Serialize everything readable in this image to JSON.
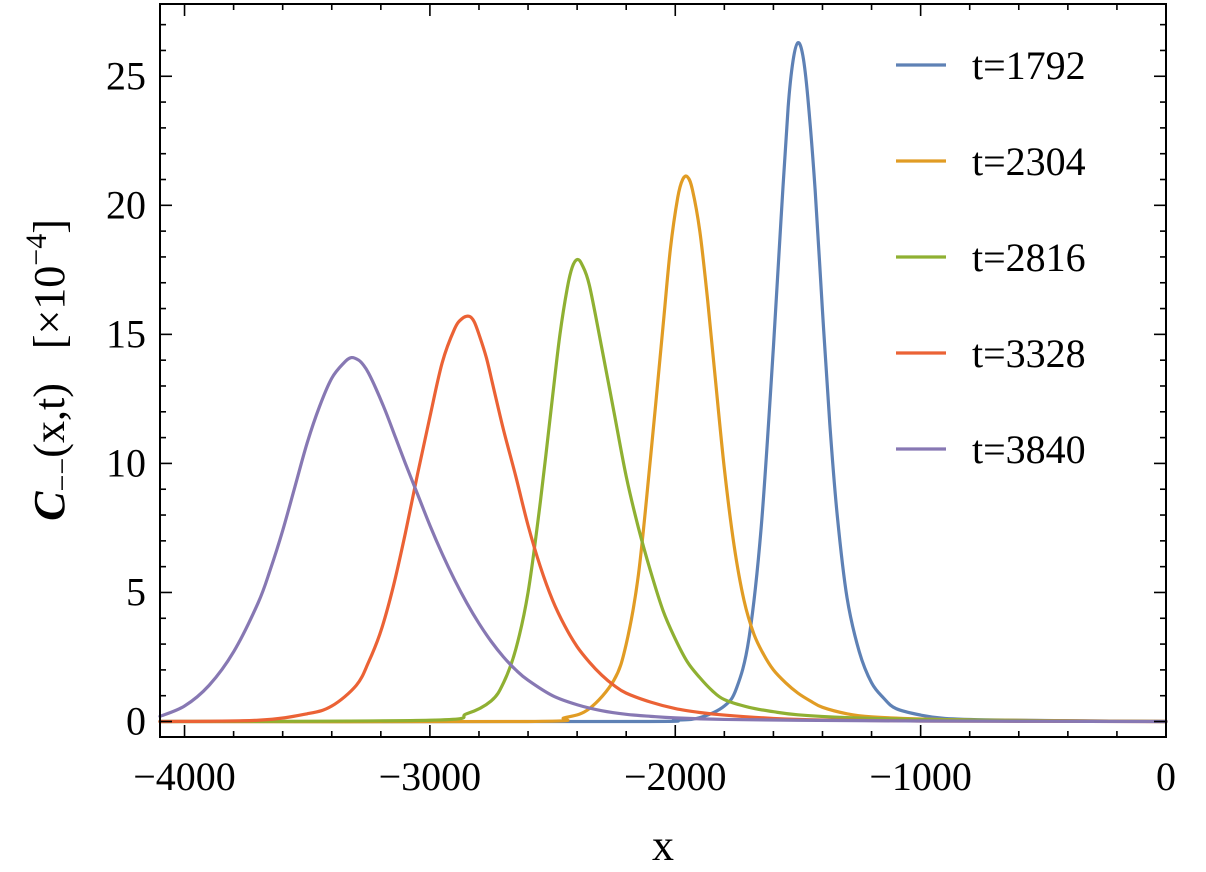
{
  "chart_data": {
    "type": "line",
    "title": "",
    "xlabel": "x",
    "ylabel": {
      "symbol": "C",
      "subscript": "−−",
      "args": "(x,t)",
      "scale_prefix": "[×10",
      "scale_exp": "−4",
      "scale_suffix": "]"
    },
    "xlim": [
      -4100,
      0
    ],
    "ylim": [
      -0.6,
      27.8
    ],
    "xticks": [
      {
        "value": -4000,
        "label": "−4000"
      },
      {
        "value": -3000,
        "label": "−3000"
      },
      {
        "value": -2000,
        "label": "−2000"
      },
      {
        "value": -1000,
        "label": "−1000"
      },
      {
        "value": 0,
        "label": "0"
      }
    ],
    "yticks": [
      {
        "value": 0,
        "label": "0"
      },
      {
        "value": 5,
        "label": "5"
      },
      {
        "value": 10,
        "label": "10"
      },
      {
        "value": 15,
        "label": "15"
      },
      {
        "value": 20,
        "label": "20"
      },
      {
        "value": 25,
        "label": "25"
      }
    ],
    "grid": false,
    "legend_position": "top-right",
    "series": [
      {
        "name": "t=1792",
        "color": "#5e81b5",
        "x": [
          -4100,
          -2200,
          -2000,
          -1900,
          -1800,
          -1750,
          -1700,
          -1650,
          -1600,
          -1570,
          -1540,
          -1520,
          -1500,
          -1480,
          -1460,
          -1430,
          -1400,
          -1370,
          -1340,
          -1300,
          -1250,
          -1200,
          -1150,
          -1100,
          -1000,
          -900,
          -700,
          -400,
          0
        ],
        "y": [
          0.0,
          0.0,
          0.05,
          0.15,
          0.6,
          1.3,
          3.2,
          7.5,
          14.5,
          19.3,
          23.8,
          25.6,
          26.3,
          25.8,
          24.2,
          20.6,
          15.9,
          11.5,
          8.0,
          4.8,
          2.7,
          1.5,
          0.9,
          0.5,
          0.25,
          0.12,
          0.06,
          0.03,
          0.0
        ]
      },
      {
        "name": "t=2304",
        "color": "#e19c24",
        "x": [
          -4100,
          -2600,
          -2450,
          -2350,
          -2250,
          -2200,
          -2150,
          -2100,
          -2050,
          -2020,
          -1990,
          -1970,
          -1950,
          -1930,
          -1900,
          -1870,
          -1840,
          -1800,
          -1760,
          -1720,
          -1680,
          -1640,
          -1600,
          -1550,
          -1500,
          -1450,
          -1400,
          -1300,
          -1200,
          -1000,
          -700,
          0
        ],
        "y": [
          0.0,
          0.0,
          0.15,
          0.5,
          1.6,
          3.0,
          5.7,
          10.3,
          15.3,
          18.3,
          20.3,
          21.0,
          21.1,
          20.6,
          19.0,
          16.5,
          13.6,
          9.8,
          6.8,
          4.7,
          3.4,
          2.6,
          2.0,
          1.5,
          1.1,
          0.8,
          0.55,
          0.3,
          0.18,
          0.1,
          0.05,
          0.0
        ]
      },
      {
        "name": "t=2816",
        "color": "#8fb032",
        "x": [
          -4100,
          -3000,
          -2850,
          -2750,
          -2700,
          -2650,
          -2600,
          -2550,
          -2500,
          -2470,
          -2440,
          -2420,
          -2400,
          -2380,
          -2350,
          -2300,
          -2250,
          -2200,
          -2150,
          -2100,
          -2050,
          -2000,
          -1950,
          -1900,
          -1850,
          -1800,
          -1700,
          -1600,
          -1500,
          -1300,
          -1000,
          -500,
          0
        ],
        "y": [
          0.0,
          0.05,
          0.3,
          0.8,
          1.5,
          2.8,
          5.0,
          8.5,
          12.6,
          15.0,
          16.8,
          17.6,
          17.9,
          17.7,
          16.9,
          14.5,
          12.0,
          9.5,
          7.5,
          5.8,
          4.3,
          3.2,
          2.3,
          1.7,
          1.2,
          0.85,
          0.55,
          0.38,
          0.26,
          0.15,
          0.08,
          0.03,
          0.0
        ]
      },
      {
        "name": "t=3328",
        "color": "#eb6235",
        "x": [
          -4100,
          -3700,
          -3500,
          -3400,
          -3300,
          -3250,
          -3200,
          -3150,
          -3100,
          -3050,
          -3000,
          -2950,
          -2900,
          -2870,
          -2840,
          -2820,
          -2800,
          -2770,
          -2740,
          -2700,
          -2650,
          -2600,
          -2550,
          -2500,
          -2450,
          -2400,
          -2350,
          -2300,
          -2250,
          -2200,
          -2100,
          -2000,
          -1900,
          -1800,
          -1600,
          -1400,
          -1000,
          -500,
          0
        ],
        "y": [
          0.0,
          0.05,
          0.3,
          0.6,
          1.4,
          2.3,
          3.5,
          5.2,
          7.3,
          9.6,
          11.8,
          13.9,
          15.2,
          15.6,
          15.7,
          15.5,
          15.0,
          14.1,
          12.9,
          11.3,
          9.5,
          7.6,
          6.0,
          4.7,
          3.7,
          2.9,
          2.3,
          1.8,
          1.4,
          1.1,
          0.75,
          0.5,
          0.35,
          0.25,
          0.12,
          0.06,
          0.02,
          0.01,
          0.0
        ]
      },
      {
        "name": "t=3840",
        "color": "#8778b3",
        "x": [
          -4100,
          -4000,
          -3900,
          -3800,
          -3700,
          -3650,
          -3600,
          -3550,
          -3500,
          -3450,
          -3400,
          -3350,
          -3320,
          -3290,
          -3270,
          -3250,
          -3220,
          -3180,
          -3140,
          -3100,
          -3050,
          -3000,
          -2950,
          -2900,
          -2850,
          -2800,
          -2750,
          -2700,
          -2650,
          -2600,
          -2500,
          -2400,
          -2300,
          -2200,
          -2100,
          -2000,
          -1800,
          -1500,
          -1000,
          -500,
          0
        ],
        "y": [
          0.2,
          0.6,
          1.4,
          2.7,
          4.6,
          5.9,
          7.4,
          9.1,
          10.8,
          12.2,
          13.3,
          13.9,
          14.1,
          14.0,
          13.8,
          13.5,
          12.9,
          12.0,
          11.0,
          10.0,
          8.8,
          7.6,
          6.5,
          5.5,
          4.6,
          3.8,
          3.1,
          2.5,
          2.0,
          1.6,
          1.0,
          0.65,
          0.42,
          0.28,
          0.2,
          0.14,
          0.08,
          0.05,
          0.02,
          0.01,
          0.0
        ]
      }
    ]
  }
}
